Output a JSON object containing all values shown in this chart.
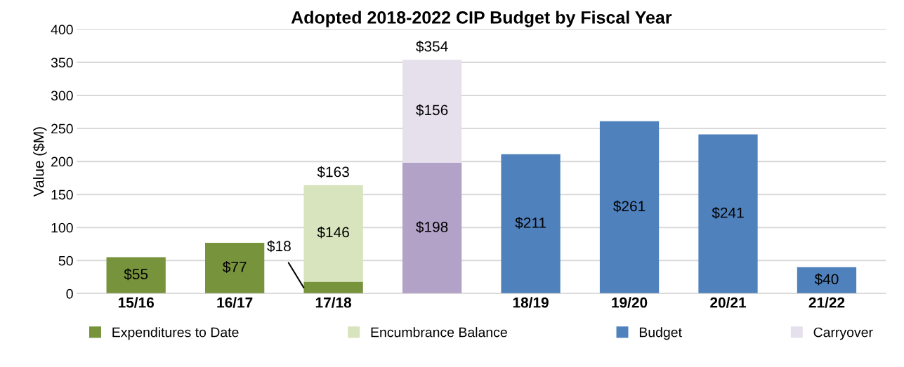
{
  "chart_data": {
    "type": "bar",
    "title": "Adopted 2018-2022 CIP Budget by Fiscal Year",
    "ylabel": "Value ($M)",
    "categories": [
      "15/16",
      "16/17",
      "17/18",
      null,
      "18/19",
      "19/20",
      "20/21",
      "21/22"
    ],
    "stacked": true,
    "series": [
      {
        "name": "Expenditures to Date",
        "color": "#77933c",
        "values": [
          55,
          77,
          18,
          null,
          null,
          null,
          null,
          null
        ],
        "value_labels": [
          "$55",
          "$77",
          "$18",
          null,
          null,
          null,
          null,
          null
        ]
      },
      {
        "name": "Encumbrance Balance",
        "color": "#d7e4bd",
        "values": [
          null,
          null,
          146,
          null,
          null,
          null,
          null,
          null
        ],
        "value_labels": [
          null,
          null,
          "$146",
          null,
          null,
          null,
          null,
          null
        ]
      },
      {
        "name": "Budget",
        "color": "#4f81bd",
        "colors": [
          "#4f81bd",
          "#4f81bd",
          "#4f81bd",
          "#b3a2c7",
          "#4f81bd",
          "#4f81bd",
          "#4f81bd",
          "#4f81bd"
        ],
        "values": [
          null,
          null,
          null,
          198,
          211,
          261,
          241,
          40
        ],
        "value_labels": [
          null,
          null,
          null,
          "$198",
          "$211",
          "$261",
          "$241",
          "$40"
        ]
      },
      {
        "name": "Carryover",
        "color": "#e6e0ec",
        "values": [
          null,
          null,
          null,
          156,
          null,
          null,
          null,
          null
        ],
        "value_labels": [
          null,
          null,
          null,
          "$156",
          null,
          null,
          null,
          null
        ]
      }
    ],
    "totals": [
      null,
      null,
      "$163",
      "$354",
      null,
      null,
      null,
      null
    ],
    "ylim": [
      0,
      400
    ],
    "yticks": [
      0,
      50,
      100,
      150,
      200,
      250,
      300,
      350,
      400
    ],
    "grid": "y",
    "legend": "bottom"
  }
}
